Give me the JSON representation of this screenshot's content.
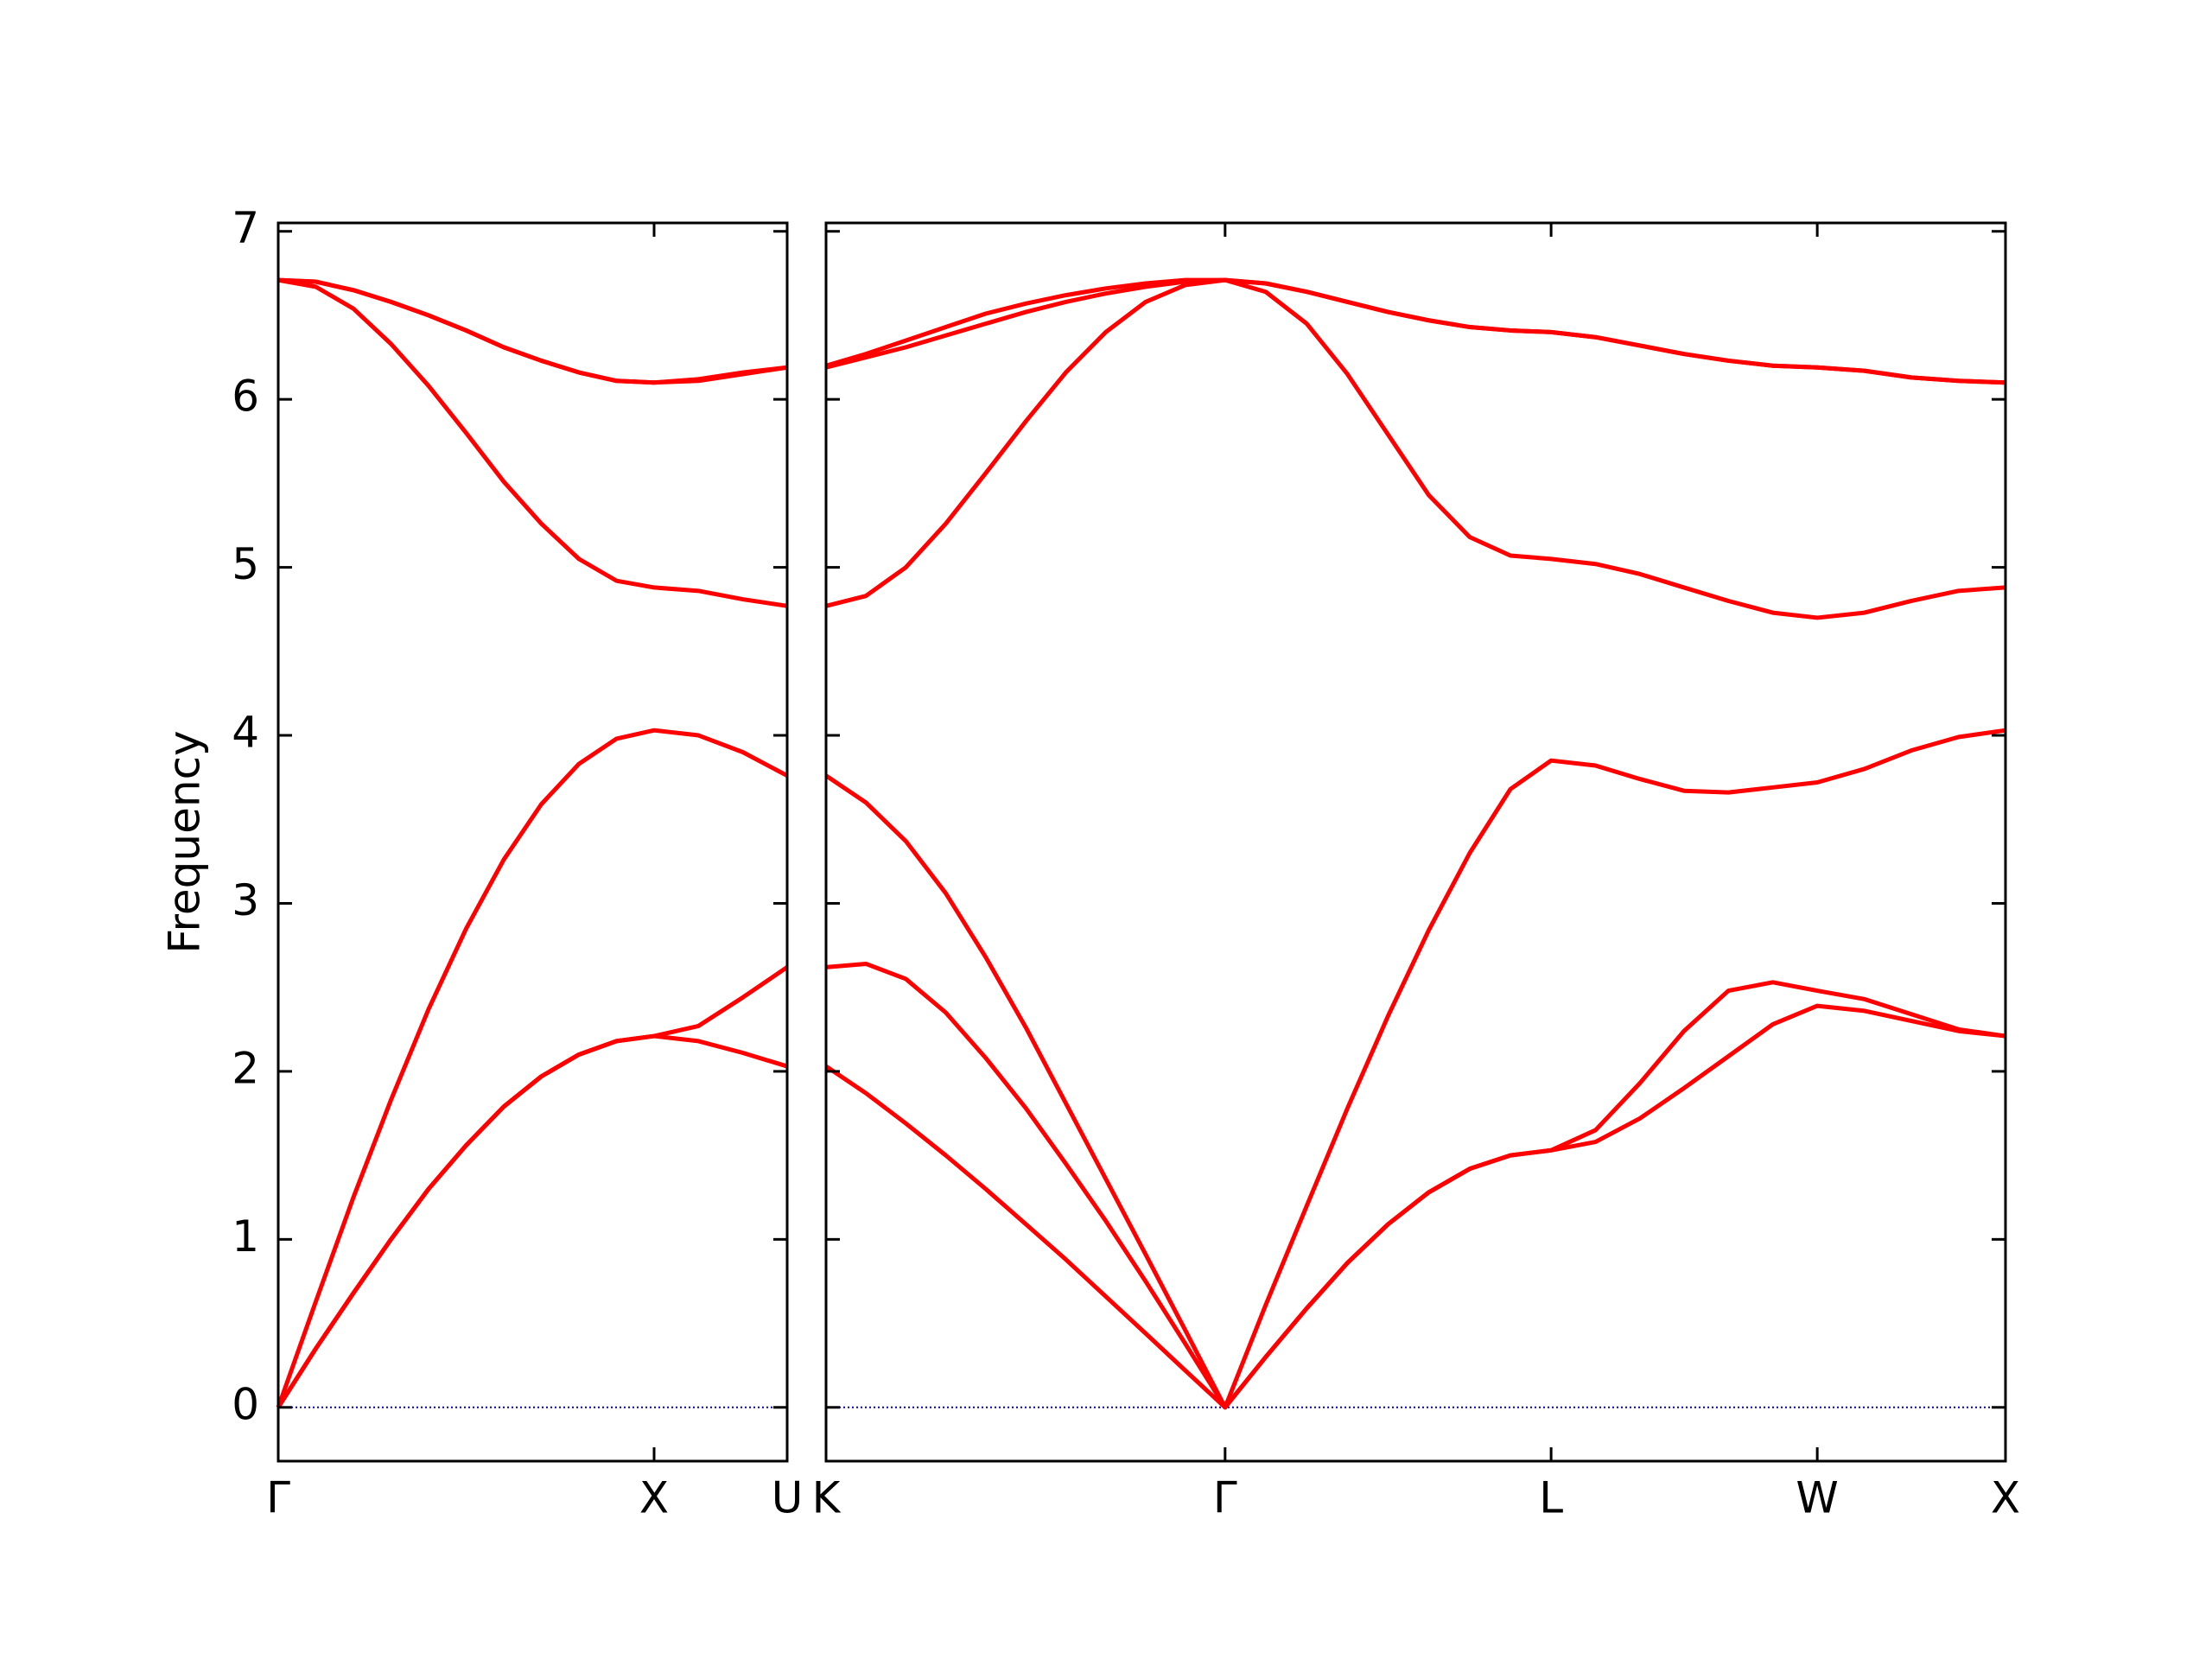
{
  "chart_data": [
    {
      "type": "line",
      "ylabel": "Frequency",
      "x": [
        0,
        0.1,
        0.2,
        0.3,
        0.4,
        0.5,
        0.6,
        0.7,
        0.8,
        0.9,
        1,
        1.118,
        1.236,
        1.354
      ],
      "series": [
        {
          "color": "#ff0000",
          "values": [
            0,
            0.35,
            0.68,
            1.0,
            1.3,
            1.56,
            1.79,
            1.97,
            2.1,
            2.18,
            2.21,
            2.18,
            2.11,
            2.03
          ]
        },
        {
          "color": "#ff0000",
          "values": [
            0,
            0.35,
            0.68,
            1.0,
            1.3,
            1.56,
            1.79,
            1.97,
            2.1,
            2.18,
            2.21,
            2.27,
            2.44,
            2.62
          ]
        },
        {
          "color": "#ff0000",
          "values": [
            0,
            0.63,
            1.25,
            1.83,
            2.37,
            2.85,
            3.26,
            3.59,
            3.83,
            3.98,
            4.03,
            4.0,
            3.9,
            3.76
          ]
        },
        {
          "color": "#ff0000",
          "values": [
            6.71,
            6.67,
            6.54,
            6.33,
            6.08,
            5.8,
            5.51,
            5.26,
            5.05,
            4.92,
            4.88,
            4.86,
            4.81,
            4.77
          ]
        },
        {
          "color": "#ff0000",
          "values": [
            6.71,
            6.7,
            6.65,
            6.58,
            6.5,
            6.41,
            6.31,
            6.23,
            6.16,
            6.11,
            6.1,
            6.11,
            6.15,
            6.19
          ]
        },
        {
          "color": "#ff0000",
          "values": [
            6.71,
            6.7,
            6.65,
            6.58,
            6.5,
            6.41,
            6.31,
            6.23,
            6.16,
            6.11,
            6.1,
            6.12,
            6.16,
            6.19
          ]
        }
      ],
      "xlim": [
        0,
        1.354
      ],
      "ylim": [
        -0.32,
        7.05
      ],
      "xticks": [
        {
          "value": 0,
          "label": "Γ"
        },
        {
          "value": 1,
          "label": "X"
        },
        {
          "value": 1.354,
          "label": "U"
        }
      ],
      "yticks": [
        0,
        1,
        2,
        3,
        4,
        5,
        6,
        7
      ],
      "show_ytick_labels": true,
      "hline": {
        "y": 0,
        "color": "#0000cc",
        "style": "dotted"
      }
    },
    {
      "type": "line",
      "x": [
        1.354,
        1.46,
        1.566,
        1.672,
        1.778,
        1.885,
        1.991,
        2.097,
        2.203,
        2.308,
        2.414,
        2.522,
        2.631,
        2.739,
        2.847,
        2.955,
        3.064,
        3.172,
        3.28,
        3.398,
        3.516,
        3.633,
        3.751,
        3.869,
        3.987,
        4.112,
        4.237,
        4.362,
        4.487
      ],
      "series": [
        {
          "color": "#ff0000",
          "values": [
            2.03,
            1.87,
            1.69,
            1.5,
            1.3,
            1.09,
            0.88,
            0.66,
            0.44,
            0.22,
            0,
            0.3,
            0.59,
            0.86,
            1.09,
            1.28,
            1.42,
            1.5,
            1.53,
            1.58,
            1.72,
            1.9,
            2.09,
            2.28,
            2.39,
            2.36,
            2.3,
            2.24,
            2.21
          ]
        },
        {
          "color": "#ff0000",
          "values": [
            2.62,
            2.64,
            2.55,
            2.35,
            2.08,
            1.78,
            1.45,
            1.11,
            0.75,
            0.38,
            0,
            0.3,
            0.59,
            0.86,
            1.09,
            1.28,
            1.42,
            1.5,
            1.53,
            1.65,
            1.93,
            2.24,
            2.48,
            2.53,
            2.48,
            2.43,
            2.34,
            2.25,
            2.21
          ]
        },
        {
          "color": "#ff0000",
          "values": [
            3.76,
            3.6,
            3.37,
            3.06,
            2.68,
            2.26,
            1.81,
            1.36,
            0.91,
            0.46,
            0,
            0.61,
            1.2,
            1.78,
            2.33,
            2.84,
            3.3,
            3.68,
            3.85,
            3.82,
            3.74,
            3.67,
            3.66,
            3.69,
            3.72,
            3.8,
            3.91,
            3.99,
            4.03
          ]
        },
        {
          "color": "#ff0000",
          "values": [
            4.77,
            4.83,
            5.0,
            5.26,
            5.56,
            5.87,
            6.16,
            6.4,
            6.58,
            6.68,
            6.71,
            6.64,
            6.45,
            6.15,
            5.79,
            5.43,
            5.18,
            5.07,
            5.05,
            5.02,
            4.96,
            4.88,
            4.8,
            4.73,
            4.7,
            4.73,
            4.8,
            4.86,
            4.88
          ]
        },
        {
          "color": "#ff0000",
          "values": [
            6.19,
            6.25,
            6.31,
            6.38,
            6.45,
            6.52,
            6.58,
            6.63,
            6.67,
            6.7,
            6.71,
            6.69,
            6.64,
            6.58,
            6.52,
            6.47,
            6.43,
            6.41,
            6.4,
            6.37,
            6.32,
            6.27,
            6.23,
            6.2,
            6.19,
            6.17,
            6.13,
            6.11,
            6.1
          ]
        },
        {
          "color": "#ff0000",
          "values": [
            6.2,
            6.27,
            6.35,
            6.43,
            6.51,
            6.57,
            6.62,
            6.66,
            6.69,
            6.71,
            6.71,
            6.69,
            6.64,
            6.58,
            6.52,
            6.47,
            6.43,
            6.41,
            6.4,
            6.37,
            6.32,
            6.27,
            6.23,
            6.2,
            6.19,
            6.17,
            6.13,
            6.11,
            6.1
          ]
        }
      ],
      "xlim": [
        1.354,
        4.487
      ],
      "ylim": [
        -0.32,
        7.05
      ],
      "xticks": [
        {
          "value": 1.354,
          "label": "K"
        },
        {
          "value": 2.414,
          "label": "Γ"
        },
        {
          "value": 3.28,
          "label": "L"
        },
        {
          "value": 3.987,
          "label": "W"
        },
        {
          "value": 4.487,
          "label": "X"
        }
      ],
      "yticks": [
        0,
        1,
        2,
        3,
        4,
        5,
        6,
        7
      ],
      "show_ytick_labels": false,
      "hline": {
        "y": 0,
        "color": "#0000cc",
        "style": "dotted"
      }
    }
  ]
}
